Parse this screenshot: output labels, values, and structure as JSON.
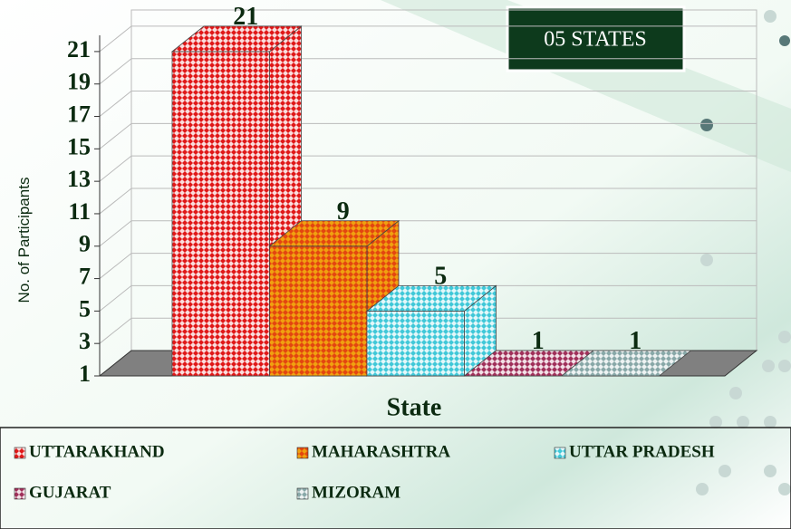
{
  "chart_data": {
    "type": "bar",
    "title": "05 STATES",
    "y_label": "No. of Participants",
    "x_label": "State",
    "categories": [
      "UTTARAKHAND",
      "MAHARASHTRA",
      "UTTAR PRADESH",
      "GUJARAT",
      "MIZORAM"
    ],
    "values": [
      21,
      9,
      5,
      1,
      1
    ],
    "colors": [
      "#e01818",
      "#f0a010",
      "#40c8d8",
      "#a0305a",
      "#88a8a8"
    ],
    "ylim": [
      1,
      22
    ],
    "yticks": [
      1,
      3,
      5,
      7,
      9,
      11,
      13,
      15,
      17,
      19,
      21
    ],
    "grid": true
  }
}
